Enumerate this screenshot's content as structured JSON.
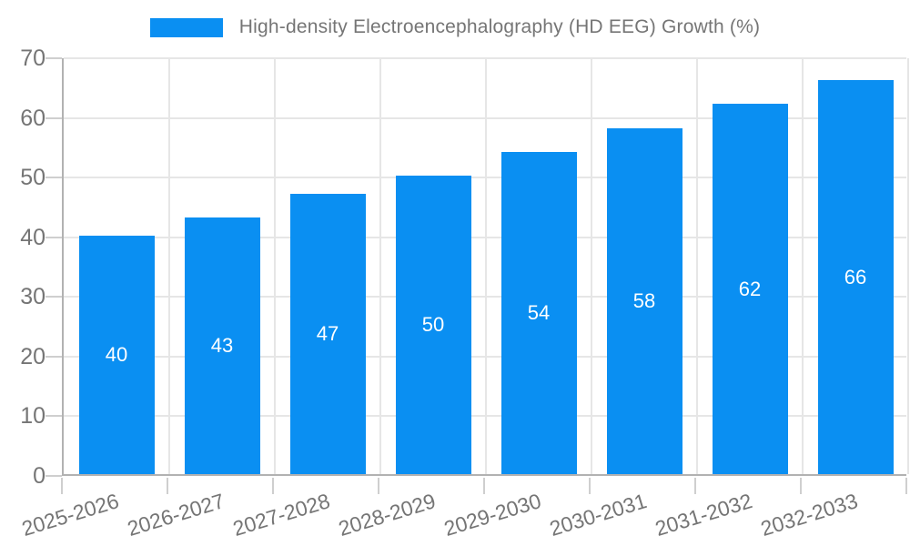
{
  "legend": {
    "label": "High-density Electroencephalography (HD EEG) Growth (%)"
  },
  "chart_data": {
    "type": "bar",
    "title": "High-density Electroencephalography (HD EEG) Growth (%)",
    "categories": [
      "2025-2026",
      "2026-2027",
      "2027-2028",
      "2028-2029",
      "2029-2030",
      "2030-2031",
      "2031-2032",
      "2032-2033"
    ],
    "values": [
      40,
      43,
      47,
      50,
      54,
      58,
      62,
      66
    ],
    "xlabel": "",
    "ylabel": "",
    "ylim": [
      0,
      70
    ],
    "yticks": [
      0,
      10,
      20,
      30,
      40,
      50,
      60,
      70
    ],
    "grid": "both",
    "legend_position": "top-center",
    "x_label_rotation_deg": -17,
    "colors": {
      "bar": "#0a8ff2",
      "value_label": "#ffffff",
      "axis_text": "#757575",
      "axis_line": "#b2b2b2",
      "gridline": "#e6e6e6",
      "tick": "#cfcfcf"
    }
  }
}
